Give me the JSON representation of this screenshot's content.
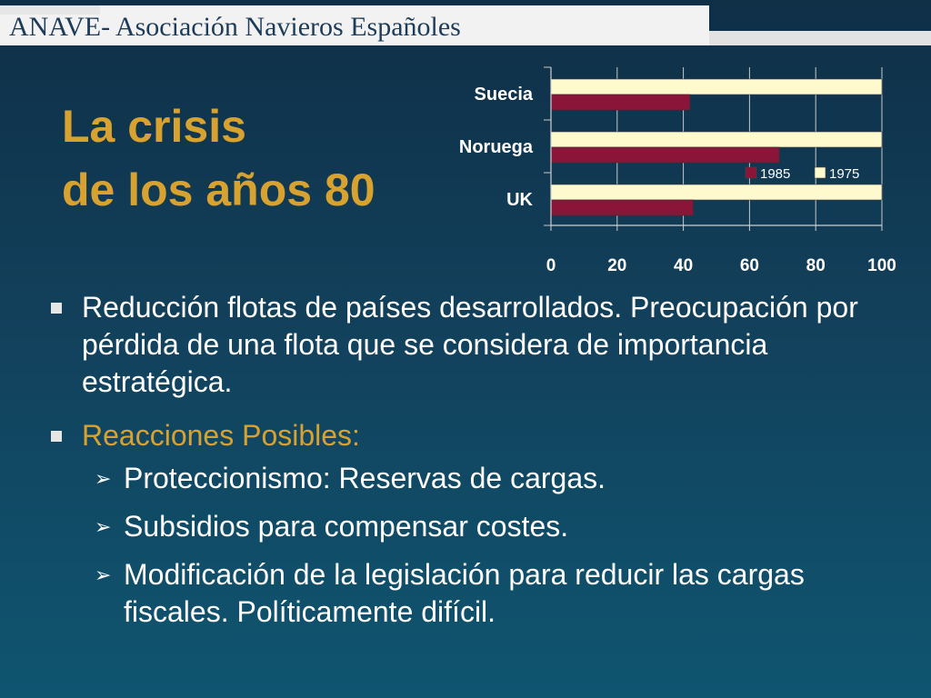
{
  "header": {
    "title": "ANAVE- Asociación Navieros Españoles"
  },
  "slide": {
    "title_line1": "La crisis",
    "title_line2": "de los años 80"
  },
  "bullets": [
    {
      "text": "Reducción flotas de países desarrollados. Preocupación por pérdida de una flota que se considera de importancia estratégica."
    },
    {
      "text": "Reacciones Posibles:"
    }
  ],
  "sub_bullets": [
    {
      "text": "Proteccionismo: Reservas de cargas."
    },
    {
      "text": "Subsidios para compensar costes."
    },
    {
      "text": "Modificación de la legislación para reducir las cargas fiscales. Políticamente difícil."
    }
  ],
  "colors": {
    "series_1985": "#8b1538",
    "series_1975": "#fffacd",
    "title": "#d8a230"
  },
  "chart_data": {
    "type": "bar",
    "orientation": "horizontal",
    "categories": [
      "Suecia",
      "Noruega",
      "UK"
    ],
    "series": [
      {
        "name": "1985",
        "values": [
          42,
          69,
          43
        ]
      },
      {
        "name": "1975",
        "values": [
          100,
          100,
          100
        ]
      }
    ],
    "xlim": [
      0,
      100
    ],
    "xticks": [
      0,
      20,
      40,
      60,
      80,
      100
    ],
    "legend": "bottom-right",
    "grid": true,
    "title": "",
    "xlabel": "",
    "ylabel": ""
  }
}
